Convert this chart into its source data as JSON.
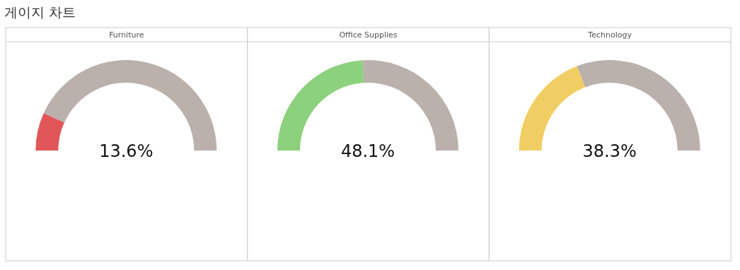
{
  "chart_data": [
    {
      "type": "donut",
      "title": "Furniture",
      "annotations": [
        "13.6%",
        "게이지 차트"
      ],
      "categories": [
        null,
        null
      ],
      "values": [
        13.6,
        86.4
      ],
      "colors": [
        "#e15759",
        "#bab0ac"
      ]
    },
    {
      "type": "donut",
      "title": "Office Supplies",
      "annotations": [
        "48.1%"
      ],
      "categories": [
        null,
        null
      ],
      "values": [
        48.1,
        51.9
      ],
      "colors": [
        "#8cd17d",
        "#bab0ac"
      ]
    },
    {
      "type": "donut",
      "title": "Technology",
      "annotations": [
        "38.3%"
      ],
      "categories": [
        null,
        null
      ],
      "values": [
        38.3,
        61.7
      ],
      "colors": [
        "#f1ce63",
        "#bab0ac"
      ]
    }
  ]
}
